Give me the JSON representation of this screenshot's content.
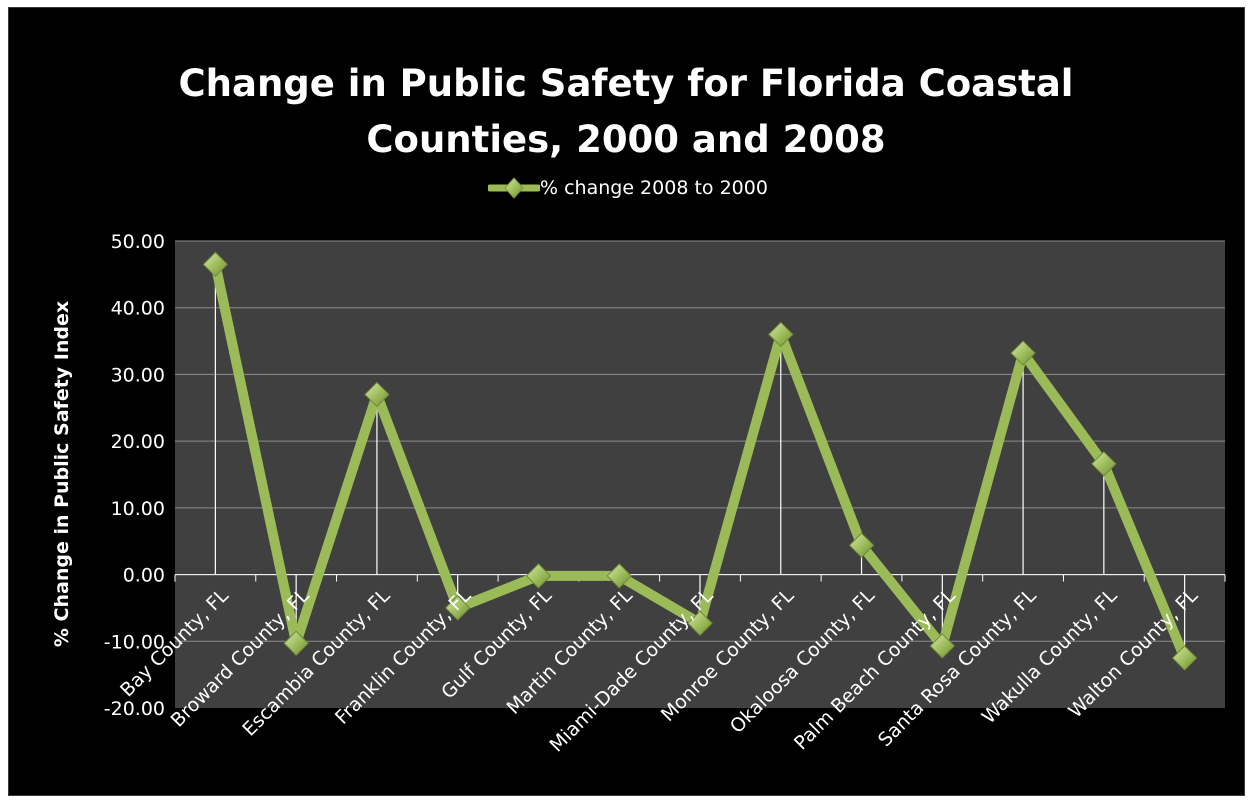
{
  "chart_data": {
    "type": "line",
    "title": "Change in Public Safety for Florida Coastal\nCounties, 2000 and 2008",
    "ylabel": "% Change in Public Safety Index",
    "xlabel": "",
    "ylim": [
      -20,
      50
    ],
    "yticks": [
      50,
      40,
      30,
      20,
      10,
      0,
      -10,
      -20
    ],
    "ytick_labels": [
      "50.00",
      "40.00",
      "30.00",
      "20.00",
      "10.00",
      "0.00",
      "-10.00",
      "-20.00"
    ],
    "categories": [
      "Bay County, FL",
      "Broward County, FL",
      "Escambia County, FL",
      "Franklin County, FL",
      "Gulf County, FL",
      "Martin County, FL",
      "Miami-Dade County, FL",
      "Monroe County, FL",
      "Okaloosa County, FL",
      "Palm Beach County, FL",
      "Santa Rosa County, FL",
      "Wakulla County, FL",
      "Walton County, FL"
    ],
    "series": [
      {
        "name": "% change 2008 to 2000",
        "values": [
          46.5,
          -10.3,
          27.0,
          -5.0,
          -0.2,
          -0.2,
          -7.3,
          36.0,
          4.4,
          -10.7,
          33.2,
          16.6,
          -12.5
        ]
      }
    ],
    "legend": "top-center",
    "grid": true,
    "colors": {
      "background": "#000000",
      "plot_area": "#404040",
      "line": "#9bbb59",
      "marker": "#9bbb59",
      "gridline": "#8c8c8c",
      "drop_line": "#ffffff",
      "text": "#ffffff"
    }
  }
}
